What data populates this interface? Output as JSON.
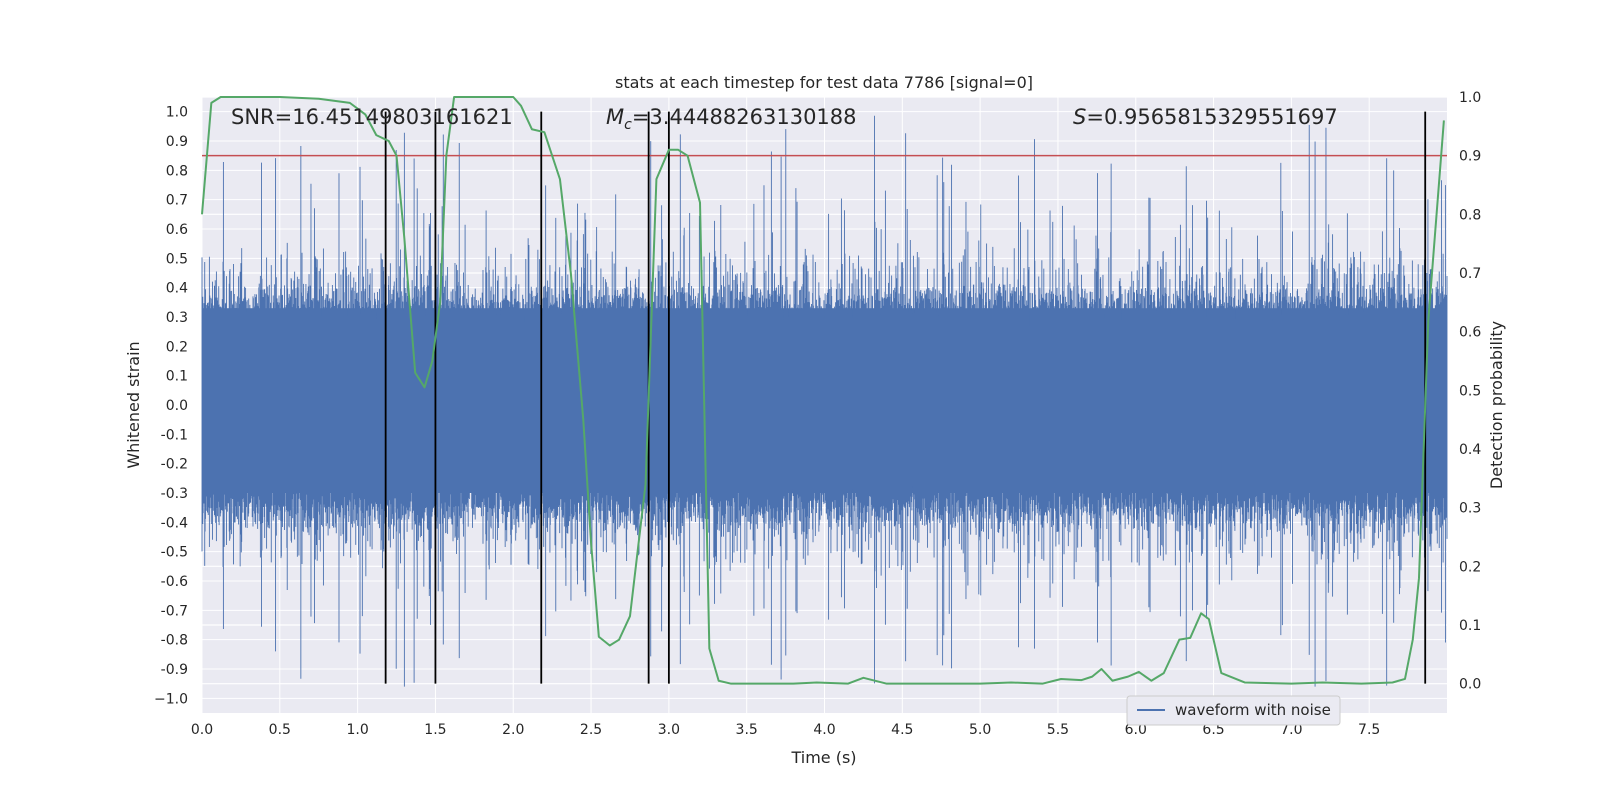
{
  "chart_data": {
    "type": "line",
    "title": "stats at each timestep for test data 7786 [signal=0]",
    "xlabel": "Time (s)",
    "ylabel_left": "Whitened strain",
    "ylabel_right": "Detection probability",
    "xlim": [
      0.0,
      8.0
    ],
    "ylim_left": [
      -1.05,
      1.05
    ],
    "ylim_right": [
      -0.05,
      1.0
    ],
    "x_ticks": [
      "0.0",
      "0.5",
      "1.0",
      "1.5",
      "2.0",
      "2.5",
      "3.0",
      "3.5",
      "4.0",
      "4.5",
      "5.0",
      "5.5",
      "6.0",
      "6.5",
      "7.0",
      "7.5"
    ],
    "y_ticks_left": [
      "1.0",
      "0.9",
      "0.8",
      "0.7",
      "0.6",
      "0.5",
      "0.4",
      "0.3",
      "0.2",
      "0.1",
      "0.0",
      "-0.1",
      "-0.2",
      "-0.3",
      "-0.4",
      "-0.5",
      "-0.6",
      "-0.7",
      "-0.8",
      "-0.9",
      "−1.0"
    ],
    "y_ticks_right": [
      "1.0",
      "0.9",
      "0.8",
      "0.7",
      "0.6",
      "0.5",
      "0.4",
      "0.3",
      "0.2",
      "0.1",
      "0.0"
    ],
    "annotations": {
      "snr": "SNR=16.45149803161621",
      "mc_symbol": "M",
      "mc_sub": "c",
      "mc_value": "=3.44488263130188",
      "s_symbol": "S",
      "s_value": "=0.9565815329551697"
    },
    "threshold": {
      "value": 0.9,
      "axis": "right",
      "color": "#c44e52"
    },
    "vertical_markers": [
      1.18,
      1.5,
      2.18,
      2.87,
      3.0,
      7.86
    ],
    "marker_range_left": [
      -0.95,
      1.0
    ],
    "series": [
      {
        "name": "waveform with noise",
        "color": "#4c72b0",
        "axis": "left",
        "envelope": "dense noise, typical amplitude ±0.4, peaks to ±1.0"
      },
      {
        "name": "detection probability",
        "color": "#55a868",
        "axis": "right",
        "x": [
          0.0,
          0.06,
          0.12,
          0.25,
          0.5,
          0.75,
          0.95,
          1.0,
          1.05,
          1.12,
          1.2,
          1.25,
          1.3,
          1.37,
          1.43,
          1.48,
          1.53,
          1.57,
          1.62,
          1.66,
          1.75,
          1.9,
          2.0,
          2.05,
          2.12,
          2.2,
          2.3,
          2.37,
          2.45,
          2.5,
          2.55,
          2.62,
          2.68,
          2.75,
          2.85,
          2.92,
          3.0,
          3.06,
          3.12,
          3.2,
          3.26,
          3.32,
          3.4,
          3.6,
          3.8,
          3.95,
          4.15,
          4.25,
          4.4,
          4.7,
          5.0,
          5.2,
          5.4,
          5.52,
          5.65,
          5.72,
          5.78,
          5.85,
          5.95,
          6.02,
          6.1,
          6.18,
          6.28,
          6.35,
          6.42,
          6.47,
          6.5,
          6.55,
          6.7,
          7.0,
          7.2,
          7.45,
          7.65,
          7.73,
          7.78,
          7.82,
          7.88,
          7.98
        ],
        "values": [
          0.8,
          0.99,
          1.0,
          1.0,
          1.0,
          0.997,
          0.99,
          0.98,
          0.97,
          0.935,
          0.925,
          0.9,
          0.76,
          0.53,
          0.505,
          0.55,
          0.65,
          0.9,
          1.0,
          1.0,
          1.0,
          1.0,
          1.0,
          0.985,
          0.945,
          0.94,
          0.86,
          0.7,
          0.45,
          0.24,
          0.08,
          0.065,
          0.075,
          0.115,
          0.34,
          0.86,
          0.91,
          0.91,
          0.9,
          0.82,
          0.06,
          0.005,
          0.0,
          0.0,
          0.0,
          0.002,
          0.0,
          0.01,
          0.0,
          0.0,
          0.0,
          0.002,
          0.0,
          0.008,
          0.006,
          0.012,
          0.025,
          0.005,
          0.012,
          0.02,
          0.005,
          0.018,
          0.075,
          0.078,
          0.12,
          0.11,
          0.075,
          0.018,
          0.002,
          0.0,
          0.002,
          0.0,
          0.002,
          0.008,
          0.075,
          0.18,
          0.62,
          0.96
        ]
      }
    ],
    "legend": {
      "label": "waveform with noise",
      "placement": "lower-right"
    }
  }
}
